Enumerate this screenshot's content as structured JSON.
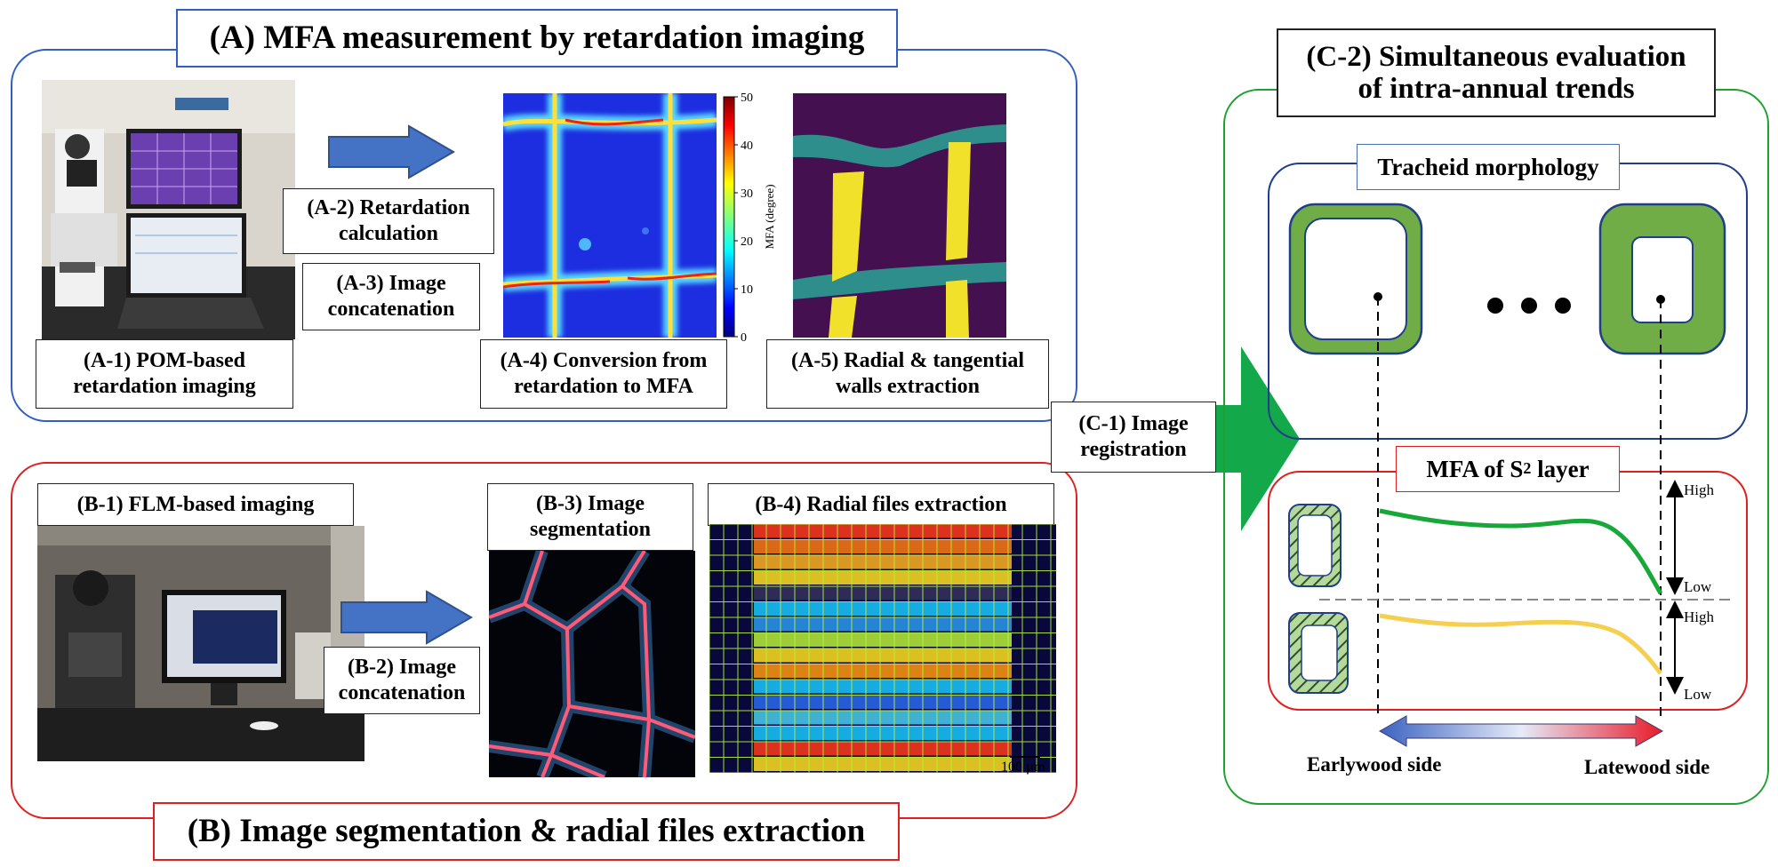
{
  "panel_a": {
    "title": "(A) MFA measurement by retardation imaging",
    "a1_label": "(A-1) POM-based\nretardation imaging",
    "a2_label": "(A-2) Retardation\ncalculation",
    "a3_label": "(A-3) Image\nconcatenation",
    "a4_label": "(A-4) Conversion from\nretardation to MFA",
    "a5_label": "(A-5)  Radial & tangential\nwalls extraction",
    "colorbar": {
      "axis_label": "MFA (degree)",
      "ticks": [
        "50",
        "40",
        "30",
        "20",
        "10",
        "0"
      ]
    }
  },
  "panel_b": {
    "title": "(B) Image segmentation & radial files extraction",
    "b1_label": "(B-1) FLM-based imaging",
    "b2_label": "(B-2) Image\nconcatenation",
    "b3_label": "(B-3) Image\nsegmentation",
    "b4_label": "(B-4) Radial files extraction",
    "scale_bar": "100 µm"
  },
  "panel_c": {
    "c1_label": "(C-1) Image\nregistration",
    "c2_title": "(C-2) Simultaneous evaluation\nof intra-annual trends",
    "tracheid_title": "Tracheid morphology",
    "mfa_title": "MFA of S",
    "mfa_title_sub": "2",
    "mfa_title_tail": " layer",
    "high_label": "High",
    "low_label": "Low",
    "earlywood_label": "Earlywood side",
    "latewood_label": "Latewood side"
  },
  "colors": {
    "frame_a": "#2f5fc4",
    "frame_b": "#e02020",
    "frame_c": "#1fa12f",
    "frame_tracheid": "#1f3f8a",
    "arrow_blue": "#4472c4",
    "arrow_green": "#13a84a",
    "cell_green": "#70ad47",
    "curve_green": "#18a83a",
    "curve_yellow": "#f5cf4f"
  }
}
